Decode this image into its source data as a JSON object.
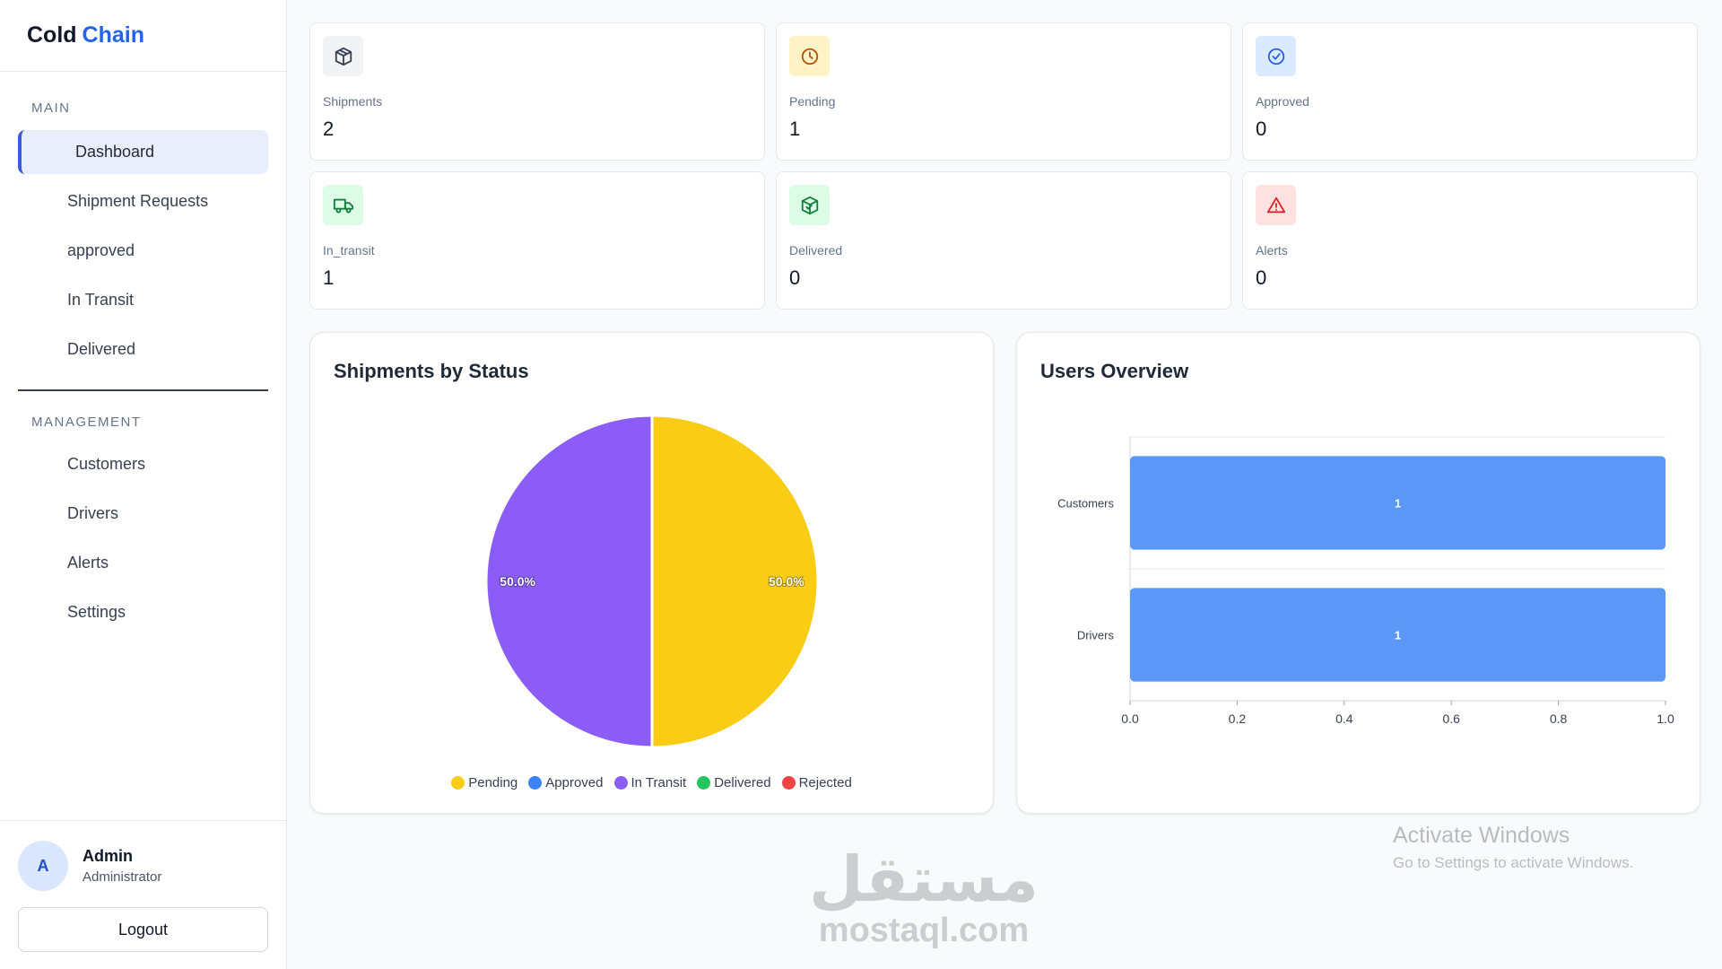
{
  "app": {
    "brand_main": "Cold",
    "brand_accent": "Chain"
  },
  "sidebar": {
    "main_label": "MAIN",
    "main_items": [
      {
        "label": "Dashboard",
        "active": true
      },
      {
        "label": "Shipment Requests"
      },
      {
        "label": "approved"
      },
      {
        "label": "In Transit"
      },
      {
        "label": "Delivered"
      }
    ],
    "management_label": "MANAGEMENT",
    "management_items": [
      {
        "label": "Customers"
      },
      {
        "label": "Drivers"
      },
      {
        "label": "Alerts"
      },
      {
        "label": "Settings"
      }
    ]
  },
  "user": {
    "initial": "A",
    "name": "Admin",
    "role": "Administrator",
    "logout_label": "Logout"
  },
  "stats": [
    {
      "label": "Shipments",
      "value": "2",
      "icon": "box-icon",
      "icon_bg": "#f1f3f5",
      "icon_color": "#374151"
    },
    {
      "label": "Pending",
      "value": "1",
      "icon": "clock-icon",
      "icon_bg": "#fef3c7",
      "icon_color": "#b45309"
    },
    {
      "label": "Approved",
      "value": "0",
      "icon": "check-circle-icon",
      "icon_bg": "#dbeafe",
      "icon_color": "#2563eb"
    },
    {
      "label": "In_transit",
      "value": "1",
      "icon": "truck-icon",
      "icon_bg": "#dcfce7",
      "icon_color": "#15803d"
    },
    {
      "label": "Delivered",
      "value": "0",
      "icon": "package-check-icon",
      "icon_bg": "#dcfce7",
      "icon_color": "#15803d"
    },
    {
      "label": "Alerts",
      "value": "0",
      "icon": "warning-icon",
      "icon_bg": "#fee2e2",
      "icon_color": "#dc2626"
    }
  ],
  "charts": {
    "status_title": "Shipments by Status",
    "users_title": "Users Overview"
  },
  "chart_data": [
    {
      "type": "pie",
      "title": "Shipments by Status",
      "categories": [
        "Pending",
        "Approved",
        "In Transit",
        "Delivered",
        "Rejected"
      ],
      "values": [
        1,
        0,
        1,
        0,
        0
      ],
      "colors": [
        "#facc15",
        "#3b82f6",
        "#8b5cf6",
        "#22c55e",
        "#ef4444"
      ],
      "data_labels": [
        "50.0%",
        "",
        "50.0%",
        "",
        ""
      ],
      "legend": "bottom"
    },
    {
      "type": "bar",
      "orientation": "horizontal",
      "title": "Users Overview",
      "categories": [
        "Customers",
        "Drivers"
      ],
      "values": [
        1,
        1
      ],
      "xlim": [
        0,
        1
      ],
      "x_ticks": [
        "0.0",
        "0.2",
        "0.4",
        "0.6",
        "0.8",
        "1.0"
      ],
      "color": "#5b97f4",
      "grid": true
    }
  ],
  "watermarks": {
    "windows_title": "Activate Windows",
    "windows_sub": "Go to Settings to activate Windows.",
    "site_ar": "مستقل",
    "site_en": "mostaql.com"
  }
}
